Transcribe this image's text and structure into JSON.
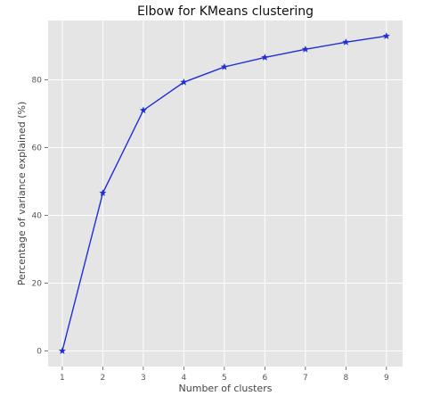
{
  "chart_data": {
    "type": "line",
    "title": "Elbow for KMeans clustering",
    "xlabel": "Number of clusters",
    "ylabel": "Percentage of variance explained (%)",
    "x": [
      1,
      2,
      3,
      4,
      5,
      6,
      7,
      8,
      9
    ],
    "series": [
      {
        "values": [
          0,
          46.6,
          71,
          79.3,
          83.8,
          86.6,
          89,
          91.1,
          92.9
        ]
      }
    ],
    "xticks": [
      1,
      2,
      3,
      4,
      5,
      6,
      7,
      8,
      9
    ],
    "yticks": [
      0,
      20,
      40,
      60,
      80
    ],
    "xlim": [
      0.65,
      9.4
    ],
    "ylim": [
      -4.6,
      97.5
    ],
    "grid": true,
    "marker": "star",
    "colors": {
      "line": "#1f2fd6",
      "plot_background": "#e5e5e5",
      "grid": "#ffffff"
    }
  }
}
